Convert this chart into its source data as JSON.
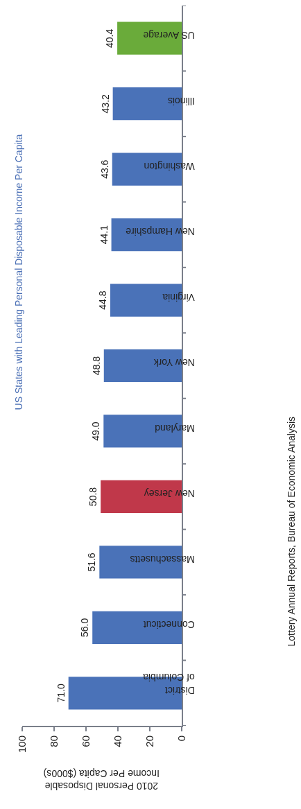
{
  "chart_data": {
    "type": "bar",
    "orientation": "horizontal",
    "title": "US States with Leading Personal Disposable Income Per Capita",
    "xlabel": "2010 Personal Disposable Income Per Capita ($000s)",
    "annotations": [
      "Lottery Annual Reports, Bureau of Economic Analysis"
    ],
    "categories": [
      "US Average",
      "Illinois",
      "Washington",
      "New Hampshire",
      "Virginia",
      "New York",
      "Maryland",
      "New Jersey",
      "Massachusetts",
      "Connecticut",
      "District of Columbia"
    ],
    "values": [
      40.4,
      43.2,
      43.6,
      44.1,
      44.8,
      48.8,
      49.0,
      50.8,
      51.6,
      56.0,
      71.0
    ],
    "colors": [
      "#6aab3a",
      "#4a72b8",
      "#4a72b8",
      "#4a72b8",
      "#4a72b8",
      "#4a72b8",
      "#4a72b8",
      "#c0384a",
      "#4a72b8",
      "#4a72b8",
      "#4a72b8"
    ],
    "value_labels": [
      "40.4",
      "43.2",
      "43.6",
      "44.1",
      "44.8",
      "48.8",
      "49.0",
      "50.8",
      "51.6",
      "56.0",
      "71.0"
    ],
    "xlim": [
      100,
      0
    ],
    "xticks": [
      100,
      80,
      60,
      40,
      20,
      0
    ]
  }
}
